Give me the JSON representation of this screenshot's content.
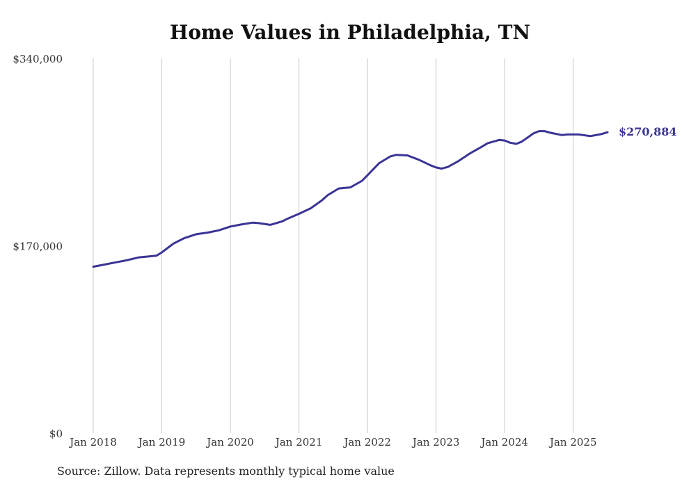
{
  "chart_data": {
    "type": "line",
    "title": "Home Values in Philadelphia, TN",
    "source": "Source: Zillow. Data represents monthly typical home value",
    "y_ticks": [
      {
        "value": 0,
        "label": "$0"
      },
      {
        "value": 170000,
        "label": "$170,000"
      },
      {
        "value": 340000,
        "label": "$340,000"
      }
    ],
    "ylim": [
      0,
      340000
    ],
    "x_ticks": [
      {
        "value": 2018,
        "label": "Jan 2018"
      },
      {
        "value": 2019,
        "label": "Jan 2019"
      },
      {
        "value": 2020,
        "label": "Jan 2020"
      },
      {
        "value": 2021,
        "label": "Jan 2021"
      },
      {
        "value": 2022,
        "label": "Jan 2022"
      },
      {
        "value": 2023,
        "label": "Jan 2023"
      },
      {
        "value": 2024,
        "label": "Jan 2024"
      },
      {
        "value": 2025,
        "label": "Jan 2025"
      }
    ],
    "xlim": [
      2018,
      2025.5
    ],
    "grid": "vertical",
    "line_color": "#3a3495",
    "end_label": "$270,884",
    "series": [
      {
        "points": [
          [
            2018.0,
            151000
          ],
          [
            2018.17,
            153000
          ],
          [
            2018.33,
            155000
          ],
          [
            2018.5,
            157000
          ],
          [
            2018.67,
            159500
          ],
          [
            2018.83,
            160500
          ],
          [
            2018.92,
            161000
          ],
          [
            2019.0,
            164000
          ],
          [
            2019.17,
            172000
          ],
          [
            2019.33,
            177000
          ],
          [
            2019.5,
            180500
          ],
          [
            2019.67,
            182000
          ],
          [
            2019.83,
            184000
          ],
          [
            2020.0,
            187500
          ],
          [
            2020.17,
            189500
          ],
          [
            2020.33,
            191000
          ],
          [
            2020.42,
            190500
          ],
          [
            2020.58,
            189000
          ],
          [
            2020.75,
            192000
          ],
          [
            2020.83,
            194500
          ],
          [
            2021.0,
            199000
          ],
          [
            2021.17,
            204000
          ],
          [
            2021.33,
            211000
          ],
          [
            2021.42,
            216000
          ],
          [
            2021.58,
            222000
          ],
          [
            2021.75,
            223000
          ],
          [
            2021.92,
            229000
          ],
          [
            2022.0,
            234000
          ],
          [
            2022.17,
            245000
          ],
          [
            2022.33,
            251000
          ],
          [
            2022.42,
            252500
          ],
          [
            2022.58,
            252000
          ],
          [
            2022.75,
            248000
          ],
          [
            2022.92,
            243000
          ],
          [
            2023.0,
            241000
          ],
          [
            2023.08,
            240000
          ],
          [
            2023.17,
            241500
          ],
          [
            2023.33,
            247000
          ],
          [
            2023.5,
            254000
          ],
          [
            2023.67,
            260000
          ],
          [
            2023.75,
            263000
          ],
          [
            2023.92,
            266000
          ],
          [
            2024.0,
            265500
          ],
          [
            2024.08,
            263500
          ],
          [
            2024.17,
            262500
          ],
          [
            2024.25,
            264500
          ],
          [
            2024.42,
            272000
          ],
          [
            2024.5,
            274000
          ],
          [
            2024.58,
            274000
          ],
          [
            2024.67,
            272500
          ],
          [
            2024.83,
            270500
          ],
          [
            2024.92,
            271000
          ],
          [
            2025.0,
            271000
          ],
          [
            2025.08,
            271000
          ],
          [
            2025.25,
            269500
          ],
          [
            2025.42,
            271500
          ],
          [
            2025.5,
            273000
          ]
        ]
      }
    ]
  }
}
